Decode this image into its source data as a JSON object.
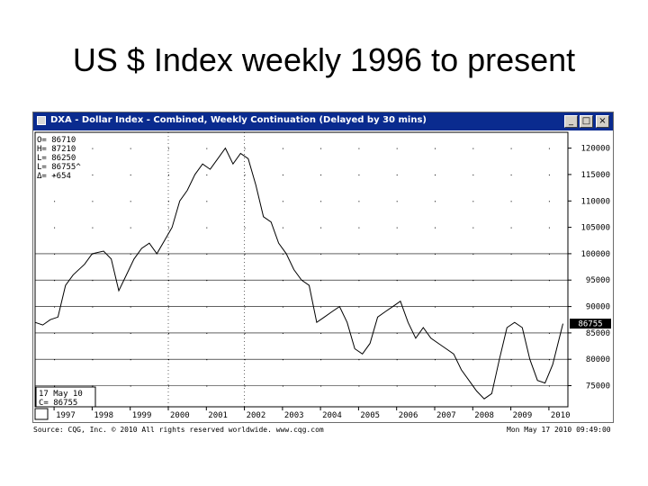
{
  "slide_title": "US $ Index weekly 1996 to present",
  "window": {
    "title": "DXA - Dollar Index - Combined, Weekly Continuation (Delayed by 30 mins)",
    "controls": {
      "minimize": "_",
      "maximize": "□",
      "close": "×"
    }
  },
  "readout": {
    "lines": [
      "O=   86710",
      "H=   87210",
      "L=   86250",
      "L=  86755^",
      "Δ=    +654"
    ]
  },
  "date_box": {
    "line1": "17  May  10",
    "line2": "C=   86755"
  },
  "footer": {
    "source": "Source: CQG, Inc. © 2010 All rights reserved worldwide. www.cqg.com",
    "timestamp": "Mon May 17 2010 09:49:00"
  },
  "colors": {
    "titlebar": "#0a2b8f",
    "price_line": "#000000",
    "gridline": "#000000",
    "last_price_box": "#000000"
  },
  "chart_data": {
    "type": "line",
    "title": "DXA - Dollar Index - Combined, Weekly Continuation (Delayed by 30 mins)",
    "x_range": [
      1996.5,
      2010.5
    ],
    "y_range": [
      71000,
      123000
    ],
    "x_tick_labels": [
      "1997",
      "1998",
      "1999",
      "2000",
      "2001",
      "2002",
      "2003",
      "2004",
      "2005",
      "2006",
      "2007",
      "2008",
      "2009",
      "2010"
    ],
    "x_tick_values": [
      1997,
      1998,
      1999,
      2000,
      2001,
      2002,
      2003,
      2004,
      2005,
      2006,
      2007,
      2008,
      2009,
      2010
    ],
    "y_tick_labels": [
      "120000",
      "115000",
      "110000",
      "105000",
      "100000",
      "95000",
      "90000",
      "85000",
      "80000",
      "75000"
    ],
    "y_tick_values": [
      120000,
      115000,
      110000,
      105000,
      100000,
      95000,
      90000,
      85000,
      80000,
      75000
    ],
    "gridlines_y": [
      100000,
      95000,
      90000,
      85000,
      80000,
      75000
    ],
    "gridlines_x": [
      2000,
      2002
    ],
    "last_price": 86755,
    "last_price_label": "86755",
    "series": [
      {
        "x": [
          1996.5,
          1996.7,
          1996.9,
          1997.1,
          1997.3,
          1997.5,
          1997.8,
          1998.0,
          1998.3,
          1998.5,
          1998.7,
          1998.9,
          1999.1,
          1999.3,
          1999.5,
          1999.7,
          1999.9,
          2000.1,
          2000.3,
          2000.5,
          2000.7,
          2000.9,
          2001.1,
          2001.3,
          2001.5,
          2001.7,
          2001.9,
          2002.1,
          2002.3,
          2002.5,
          2002.7,
          2002.9,
          2003.1,
          2003.3,
          2003.5,
          2003.7,
          2003.9,
          2004.1,
          2004.3,
          2004.5,
          2004.7,
          2004.9,
          2005.1,
          2005.3,
          2005.5,
          2005.7,
          2005.9,
          2006.1,
          2006.3,
          2006.5,
          2006.7,
          2006.9,
          2007.1,
          2007.3,
          2007.5,
          2007.7,
          2007.9,
          2008.1,
          2008.3,
          2008.5,
          2008.7,
          2008.9,
          2009.1,
          2009.3,
          2009.5,
          2009.7,
          2009.9,
          2010.1,
          2010.37
        ],
        "y": [
          87000,
          86500,
          87500,
          88000,
          94000,
          96000,
          98000,
          100000,
          100500,
          99000,
          93000,
          96000,
          99000,
          101000,
          102000,
          100000,
          102500,
          105000,
          110000,
          112000,
          115000,
          117000,
          116000,
          118000,
          120000,
          117000,
          119000,
          118000,
          113000,
          107000,
          106000,
          102000,
          100000,
          97000,
          95000,
          94000,
          87000,
          88000,
          89000,
          90000,
          87000,
          82000,
          81000,
          83000,
          88000,
          89000,
          90000,
          91000,
          87000,
          84000,
          86000,
          84000,
          83000,
          82000,
          81000,
          78000,
          76000,
          74000,
          72500,
          73500,
          80000,
          86000,
          87000,
          86000,
          80000,
          76000,
          75500,
          79000,
          86755
        ]
      }
    ]
  }
}
